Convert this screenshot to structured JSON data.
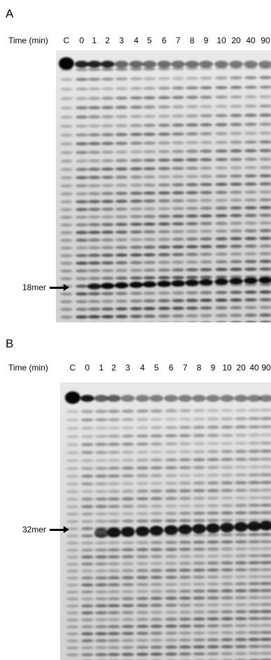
{
  "panels": [
    {
      "letter": "A",
      "time_header": "Time (min)",
      "lanes": [
        "C",
        "0",
        "1",
        "2",
        "3",
        "4",
        "5",
        "6",
        "7",
        "8",
        "9",
        "10",
        "20",
        "40",
        "90"
      ],
      "marker_label": "18mer"
    },
    {
      "letter": "B",
      "time_header": "Time (min)",
      "lanes": [
        "C",
        "0",
        "1",
        "2",
        "3",
        "4",
        "5",
        "6",
        "7",
        "8",
        "9",
        "10",
        "20",
        "40",
        "90"
      ],
      "marker_label": "32mer"
    }
  ],
  "colors": {
    "gel_background": "#dcdcdc",
    "band": "#000000"
  }
}
